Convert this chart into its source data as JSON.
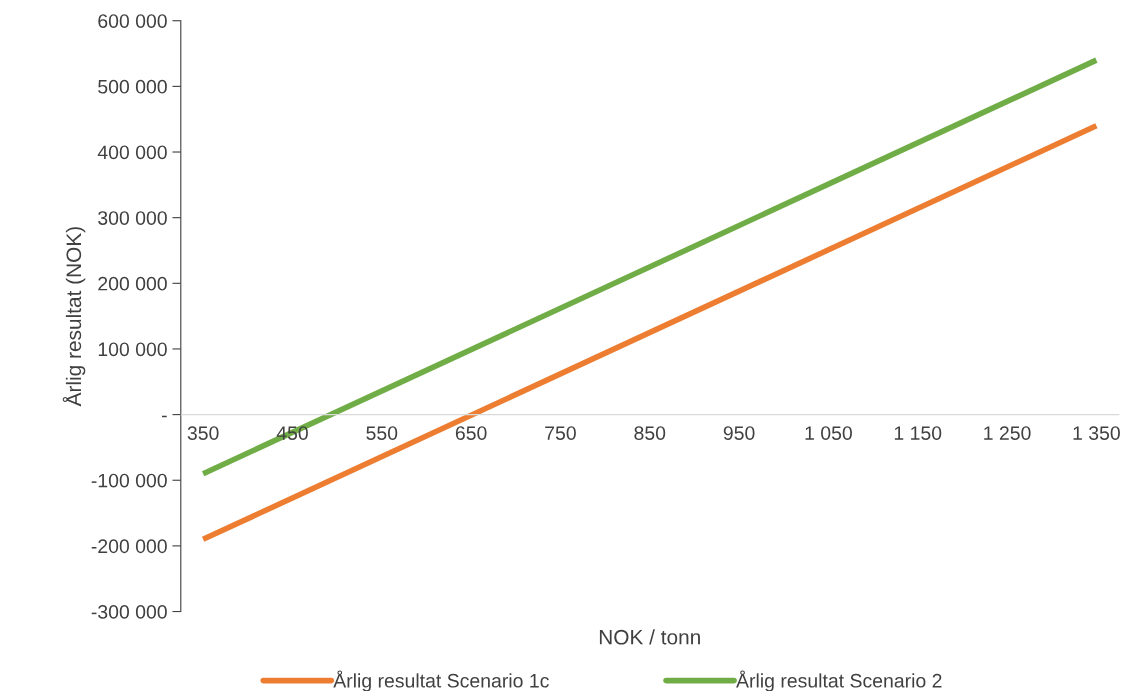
{
  "chart_data": {
    "type": "line",
    "xlabel": "NOK / tonn",
    "ylabel": "Årlig resultat (NOK)",
    "series": [
      {
        "name": "Årlig resultat Scenario 1c",
        "color": "#ed7d31",
        "values": [
          -190000,
          440000
        ]
      },
      {
        "name": "Årlig resultat Scenario 2",
        "color": "#70ad47",
        "values": [
          -90000,
          540000
        ]
      }
    ],
    "x": [
      350,
      1350
    ],
    "xlim": [
      325,
      1375
    ],
    "xticks": [
      350,
      450,
      550,
      650,
      750,
      850,
      950,
      {
        "value": 1050,
        "label": "1 050"
      },
      {
        "value": 1150,
        "label": "1 150"
      },
      {
        "value": 1250,
        "label": "1 250"
      },
      {
        "value": 1350,
        "label": "1 350"
      }
    ],
    "ylim": [
      -300000,
      600000
    ],
    "yticks": [
      {
        "value": -300000,
        "label": "-300 000"
      },
      {
        "value": -200000,
        "label": "-200 000"
      },
      {
        "value": -100000,
        "label": "-100 000"
      },
      {
        "value": 0,
        "label": "-"
      },
      {
        "value": 100000,
        "label": "100 000"
      },
      {
        "value": 200000,
        "label": "200 000"
      },
      {
        "value": 300000,
        "label": "300 000"
      },
      {
        "value": 400000,
        "label": "400 000"
      },
      {
        "value": 500000,
        "label": "500 000"
      },
      {
        "value": 600000,
        "label": "600 000"
      }
    ],
    "grid": false,
    "legend": "bottom",
    "marker": "none",
    "line_style": "solid"
  }
}
